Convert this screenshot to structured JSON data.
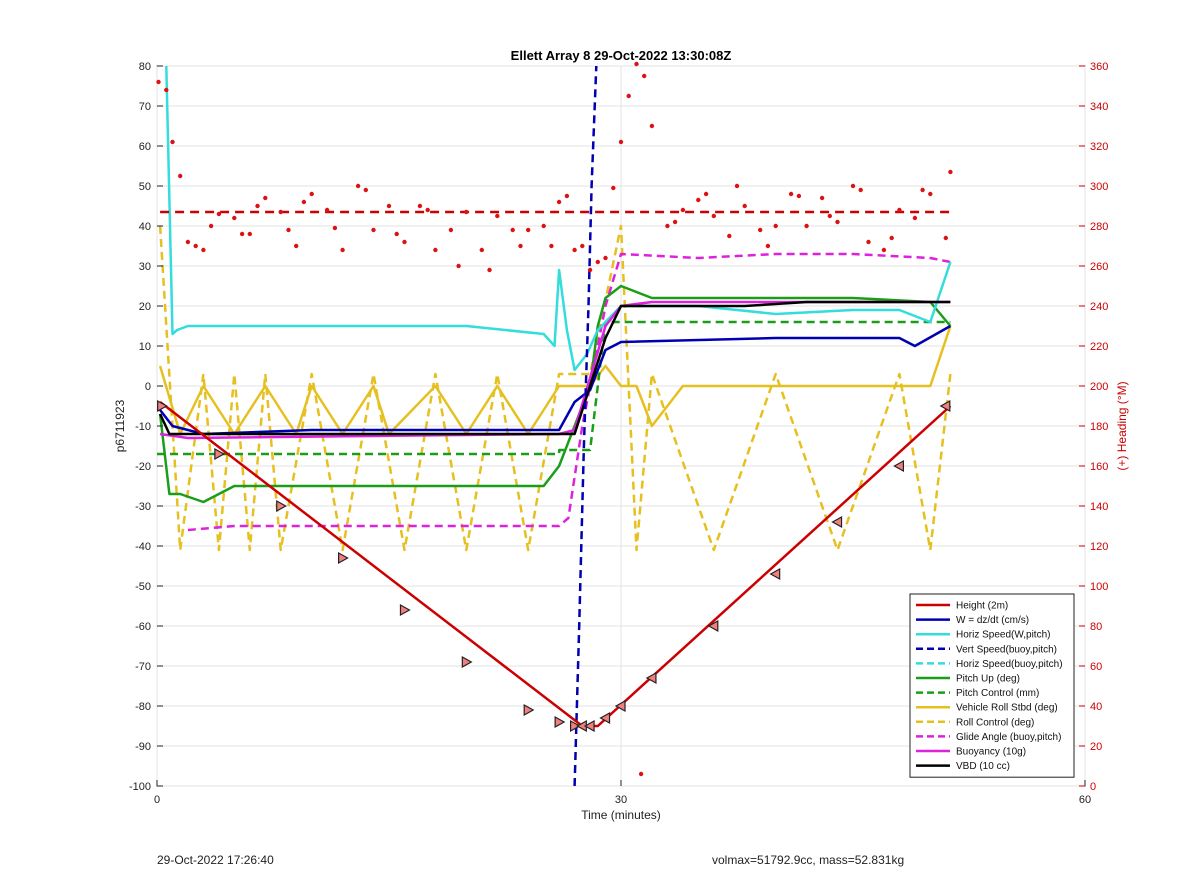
{
  "chart_data": {
    "type": "line",
    "title": "Ellett Array 8 29-Oct-2022 13:30:08Z",
    "xlabel": "Time (minutes)",
    "ylabel": "p6711923",
    "y2label": "(+) Heading (°M)",
    "xlim": [
      0,
      60
    ],
    "ylim": [
      -100,
      80
    ],
    "y2lim": [
      0,
      360
    ],
    "xticks": [
      0,
      30,
      60
    ],
    "yticks": [
      -100,
      -90,
      -80,
      -70,
      -60,
      -50,
      -40,
      -30,
      -20,
      -10,
      0,
      10,
      20,
      30,
      40,
      50,
      60,
      70,
      80
    ],
    "y2ticks": [
      0,
      20,
      40,
      60,
      80,
      100,
      120,
      140,
      160,
      180,
      200,
      220,
      240,
      260,
      280,
      300,
      320,
      340,
      360
    ],
    "grid": true,
    "legend_position": "bottom-right",
    "legend": [
      {
        "label": "Height (2m)",
        "color": "#cc0000",
        "style": "solid"
      },
      {
        "label": "W = dz/dt (cm/s)",
        "color": "#0000b0",
        "style": "solid"
      },
      {
        "label": "Horiz Speed(W,pitch)",
        "color": "#33dddd",
        "style": "solid"
      },
      {
        "label": "Vert Speed(buoy,pitch)",
        "color": "#0000b0",
        "style": "dashed"
      },
      {
        "label": "Horiz Speed(buoy,pitch)",
        "color": "#33dddd",
        "style": "dashed"
      },
      {
        "label": "Pitch Up (deg)",
        "color": "#1a9e1a",
        "style": "solid"
      },
      {
        "label": "Pitch Control (mm)",
        "color": "#1a9e1a",
        "style": "dashed"
      },
      {
        "label": "Vehicle Roll Stbd (deg)",
        "color": "#e6c020",
        "style": "solid"
      },
      {
        "label": "Roll Control (deg)",
        "color": "#e6c020",
        "style": "dashed"
      },
      {
        "label": "Glide Angle (buoy,pitch)",
        "color": "#dd22dd",
        "style": "dashed"
      },
      {
        "label": "Buoyancy (10g)",
        "color": "#dd22dd",
        "style": "solid"
      },
      {
        "label": "VBD (10 cc)",
        "color": "#000000",
        "style": "solid"
      }
    ],
    "series": [
      {
        "name": "Height (2m)",
        "x": [
          0.2,
          27.5,
          28.5,
          51.3
        ],
        "y": [
          -4,
          -85,
          -85,
          -5
        ]
      },
      {
        "name": "W = dz/dt (cm/s)",
        "x": [
          0.2,
          1,
          3,
          10,
          20,
          26,
          27,
          28,
          29,
          30,
          40,
          48,
          49,
          51.3
        ],
        "y": [
          -6,
          -10,
          -12,
          -11,
          -11,
          -11,
          -4,
          -1,
          9,
          11,
          12,
          12,
          10,
          15
        ]
      },
      {
        "name": "Horiz Speed(W,pitch)",
        "x": [
          0.6,
          1.0,
          1.3,
          2,
          10,
          20,
          25,
          25.7,
          26,
          26.5,
          27,
          27.8,
          28.5,
          30,
          35,
          40,
          45,
          48,
          50,
          51.3
        ],
        "y": [
          80,
          13,
          14,
          15,
          15,
          15,
          13,
          10,
          29,
          14,
          4,
          8,
          14,
          20,
          20,
          18,
          19,
          19,
          16,
          31
        ]
      },
      {
        "name": "Vert Speed(buoy,pitch)",
        "x": [
          27.0,
          27.3,
          27.6,
          27.9,
          28.1,
          28.4
        ],
        "y": [
          -100,
          -60,
          -15,
          20,
          50,
          80
        ]
      },
      {
        "name": "Pitch Up (deg)",
        "x": [
          0.2,
          0.8,
          1.5,
          3,
          5,
          10,
          20,
          25,
          26,
          27,
          28,
          28.5,
          29,
          30,
          32,
          40,
          45,
          50,
          51.3
        ],
        "y": [
          -7,
          -27,
          -27,
          -29,
          -25,
          -25,
          -25,
          -25,
          -20,
          -10,
          0,
          15,
          22,
          25,
          22,
          22,
          22,
          21,
          15
        ]
      },
      {
        "name": "Pitch Control (mm)",
        "x": [
          0,
          26,
          26.01,
          28,
          29,
          29.01,
          51.3
        ],
        "y": [
          -17,
          -17,
          -16,
          -16,
          16,
          16,
          16
        ]
      },
      {
        "name": "Vehicle Roll Stbd (deg)",
        "x": [
          0.2,
          1.5,
          3,
          5,
          7,
          9,
          10,
          12,
          14,
          15,
          18,
          20,
          22,
          24,
          26,
          28,
          29,
          30,
          31,
          32,
          34,
          36,
          38,
          40,
          42,
          44,
          46,
          48,
          50,
          51.3
        ],
        "y": [
          5,
          -12,
          0,
          -12,
          0,
          -12,
          0,
          -12,
          0,
          -12,
          0,
          -12,
          0,
          -12,
          0,
          0,
          5,
          0,
          0,
          -10,
          0,
          0,
          0,
          0,
          0,
          0,
          0,
          0,
          0,
          15
        ]
      },
      {
        "name": "Roll Control (deg)",
        "x": [
          0.2,
          1.5,
          3,
          4,
          5,
          6,
          7,
          8,
          10,
          12,
          14,
          16,
          18,
          20,
          22,
          24,
          26,
          28,
          30,
          31,
          32,
          36,
          40,
          44,
          48,
          50,
          51.3
        ],
        "y": [
          40,
          -41,
          3,
          -41,
          3,
          -41,
          3,
          -41,
          3,
          -41,
          3,
          -41,
          3,
          -41,
          3,
          -41,
          3,
          3,
          40,
          -41,
          3,
          -41,
          3,
          -41,
          3,
          -41,
          3
        ]
      },
      {
        "name": "Glide Angle (buoy,pitch)",
        "x": [
          2,
          5,
          10,
          20,
          26,
          26.6,
          27.5,
          29,
          30,
          35,
          40,
          45,
          50,
          51.3
        ],
        "y": [
          -36,
          -35,
          -35,
          -35,
          -35,
          -33,
          -10,
          20,
          33,
          32,
          33,
          33,
          32,
          31
        ]
      },
      {
        "name": "Buoyancy (10g)",
        "x": [
          0.2,
          2,
          26,
          27,
          29,
          30,
          32,
          51.3
        ],
        "y": [
          -12,
          -13,
          -12,
          -11,
          15,
          20,
          21,
          21
        ]
      },
      {
        "name": "VBD (10 cc)",
        "x": [
          0.2,
          0.8,
          26,
          27,
          29,
          30,
          38,
          42,
          51.3
        ],
        "y": [
          -7,
          -12,
          -12,
          -12,
          12,
          20,
          20,
          21,
          21
        ]
      },
      {
        "name": "Heading",
        "axis": "right",
        "x": [
          0.1,
          0.6,
          1,
          1.5,
          2,
          2.5,
          3,
          3.5,
          4,
          5,
          5.5,
          6,
          6.5,
          7,
          8,
          8.5,
          9,
          9.5,
          10,
          11,
          11.5,
          12,
          13,
          13.5,
          14,
          15,
          15.5,
          16,
          17,
          17.5,
          18,
          19,
          19.5,
          20,
          21,
          21.5,
          22,
          23,
          23.5,
          24,
          25,
          25.5,
          26,
          26.5,
          27,
          27.5,
          28,
          28.5,
          29,
          29.5,
          30,
          30.5,
          31,
          31.5,
          32,
          33,
          33.5,
          34,
          35,
          35.5,
          36,
          37,
          37.5,
          38,
          39,
          39.5,
          40,
          41,
          41.5,
          42,
          43,
          43.5,
          44,
          45,
          45.5,
          46,
          47,
          47.5,
          48,
          49,
          49.5,
          50,
          51,
          51.3,
          31.3
        ],
        "y": [
          352,
          348,
          322,
          305,
          272,
          270,
          268,
          280,
          286,
          284,
          276,
          276,
          290,
          294,
          287,
          278,
          270,
          292,
          296,
          288,
          279,
          268,
          300,
          298,
          278,
          290,
          276,
          272,
          290,
          288,
          268,
          278,
          260,
          287,
          268,
          258,
          285,
          278,
          270,
          278,
          280,
          270,
          292,
          295,
          268,
          270,
          258,
          262,
          264,
          299,
          322,
          345,
          361,
          355,
          330,
          280,
          282,
          288,
          293,
          296,
          285,
          275,
          300,
          290,
          278,
          270,
          280,
          296,
          295,
          280,
          294,
          285,
          282,
          300,
          298,
          272,
          268,
          274,
          288,
          284,
          298,
          296,
          274,
          307,
          6
        ]
      },
      {
        "name": "Heading mean",
        "axis": "right",
        "x": [
          0.2,
          51.3
        ],
        "y": [
          287,
          287
        ]
      }
    ],
    "markers_right": {
      "x": [
        0.3,
        4,
        8,
        12,
        16,
        20,
        24,
        26,
        27,
        27.5,
        28,
        29,
        30,
        32,
        36,
        40,
        44,
        48,
        51
      ],
      "y": [
        -5,
        -17,
        -30,
        -43,
        -56,
        -69,
        -81,
        -84,
        -85,
        -85,
        -85,
        -83,
        -80,
        -73,
        -60,
        -47,
        -34,
        -20,
        -5
      ]
    }
  },
  "footer": {
    "left": "29-Oct-2022 17:26:40",
    "right": "volmax=51792.9cc, mass=52.831kg"
  }
}
